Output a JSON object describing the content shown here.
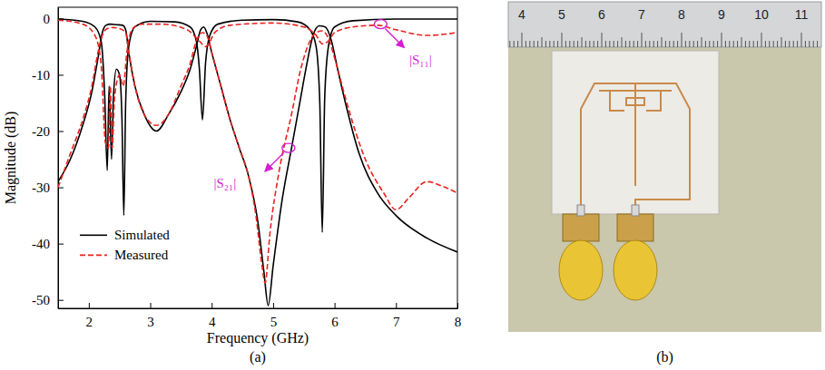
{
  "chart_data": {
    "type": "line",
    "x_label": "Frequency (GHz)",
    "y_label": "Magnitude (dB)",
    "xlim": [
      1.5,
      8
    ],
    "xticks": [
      2,
      3,
      4,
      5,
      6,
      7,
      8
    ],
    "ylim": [
      -51.5,
      2
    ],
    "yticks": [
      -50,
      -40,
      -30,
      -20,
      -10,
      0
    ],
    "grid": false,
    "legend": "lower left",
    "series": [
      {
        "name": "Simulated",
        "color": "#000000",
        "line_style": "solid",
        "x": [
          1.5,
          1.7,
          1.9,
          2.05,
          2.15,
          2.22,
          2.28,
          2.35,
          2.45,
          2.55,
          2.6,
          2.65,
          2.75,
          2.9,
          3.1,
          3.3,
          3.5,
          3.65,
          3.75,
          3.82,
          3.87,
          3.92,
          4.0,
          4.15,
          4.3,
          4.45,
          4.6,
          4.75,
          4.85,
          4.92,
          5.0,
          5.15,
          5.3,
          5.45,
          5.55,
          5.65,
          5.75,
          5.85,
          5.95,
          6.05,
          6.2,
          6.4,
          6.7,
          7.0,
          7.5,
          8.0
        ],
        "values": [
          -29,
          -25,
          -19,
          -13,
          -7,
          -2.5,
          -1.2,
          -1,
          -1.1,
          -1.2,
          -2,
          -6,
          -12,
          -17,
          -20,
          -17,
          -13,
          -9,
          -5,
          -2,
          -1.5,
          -2.5,
          -6,
          -12,
          -18,
          -23,
          -28,
          -36,
          -45,
          -51,
          -44,
          -32,
          -23,
          -14,
          -8,
          -3,
          -1.3,
          -1.5,
          -4,
          -9,
          -16,
          -24,
          -31,
          -35,
          -39,
          -41.5
        ]
      },
      {
        "name": "Simulated",
        "color": "#000000",
        "line_style": "solid",
        "x": [
          1.5,
          1.9,
          2.1,
          2.2,
          2.26,
          2.3,
          2.33,
          2.37,
          2.4,
          2.45,
          2.5,
          2.54,
          2.57,
          2.6,
          2.65,
          2.75,
          3.0,
          3.4,
          3.65,
          3.75,
          3.8,
          3.85,
          3.9,
          3.97,
          4.1,
          4.5,
          5.0,
          5.4,
          5.6,
          5.7,
          5.76,
          5.8,
          5.84,
          5.9,
          6.0,
          6.3,
          7.0,
          8.0
        ],
        "values": [
          -0.1,
          -0.5,
          -1.5,
          -4,
          -14,
          -27,
          -12,
          -25,
          -14,
          -9,
          -10,
          -18,
          -35,
          -15,
          -5,
          -1.5,
          -0.5,
          -0.6,
          -1.5,
          -4,
          -9,
          -18,
          -8,
          -3,
          -1,
          -0.3,
          -0.2,
          -0.6,
          -2,
          -5,
          -15,
          -38,
          -14,
          -5,
          -1.5,
          -0.4,
          -0.1,
          -0.1
        ]
      },
      {
        "name": "Measured",
        "color": "#e8231f",
        "line_style": "dashed",
        "x": [
          1.5,
          1.7,
          1.9,
          2.05,
          2.15,
          2.22,
          2.3,
          2.4,
          2.5,
          2.6,
          2.65,
          2.75,
          2.9,
          3.1,
          3.3,
          3.5,
          3.65,
          3.75,
          3.85,
          3.92,
          4.0,
          4.15,
          4.3,
          4.45,
          4.6,
          4.72,
          4.82,
          4.87,
          4.95,
          5.1,
          5.3,
          5.45,
          5.6,
          5.7,
          5.8,
          5.9,
          6.0,
          6.2,
          6.5,
          6.8,
          7.0,
          7.2,
          7.5,
          7.8,
          8.0
        ],
        "values": [
          -30,
          -24,
          -18,
          -12,
          -6,
          -3,
          -1.8,
          -1.6,
          -1.8,
          -2.5,
          -6,
          -12,
          -17,
          -19,
          -17,
          -12,
          -8,
          -4,
          -2.5,
          -3,
          -6,
          -12,
          -18,
          -23,
          -28,
          -35,
          -44,
          -47,
          -38,
          -27,
          -17,
          -9,
          -4,
          -2.5,
          -2.2,
          -3.5,
          -7,
          -15,
          -25,
          -31,
          -34,
          -32,
          -29,
          -30,
          -31
        ]
      },
      {
        "name": "Measured",
        "color": "#e8231f",
        "line_style": "dashed",
        "x": [
          1.5,
          1.9,
          2.1,
          2.2,
          2.27,
          2.32,
          2.35,
          2.38,
          2.42,
          2.5,
          2.56,
          2.62,
          2.7,
          2.85,
          3.2,
          3.6,
          3.8,
          3.9,
          3.95,
          4.05,
          4.3,
          5.0,
          5.5,
          5.7,
          5.8,
          5.9,
          6.0,
          6.3,
          6.7,
          7.0,
          7.5,
          8.0
        ],
        "values": [
          -0.3,
          -1,
          -3,
          -8,
          -22,
          -23,
          -12,
          -23,
          -14,
          -10,
          -12,
          -6,
          -2,
          -1,
          -1,
          -2,
          -4,
          -5,
          -4.5,
          -2.5,
          -1.2,
          -0.8,
          -1.5,
          -3,
          -4.5,
          -4,
          -2.5,
          -1.5,
          -1.2,
          -2,
          -3,
          -2.5
        ]
      }
    ],
    "annotations": [
      {
        "text": "|S₁₁|",
        "x": 6.75,
        "y": -1,
        "color": "#d21fd2"
      },
      {
        "text": "|S₂₁|",
        "x": 5.25,
        "y": -23,
        "color": "#d21fd2"
      }
    ]
  },
  "photo": {
    "ruler_labels": [
      4,
      5,
      6,
      7,
      8,
      9,
      10,
      11
    ]
  },
  "captions": [
    "(a)",
    "(b)"
  ]
}
